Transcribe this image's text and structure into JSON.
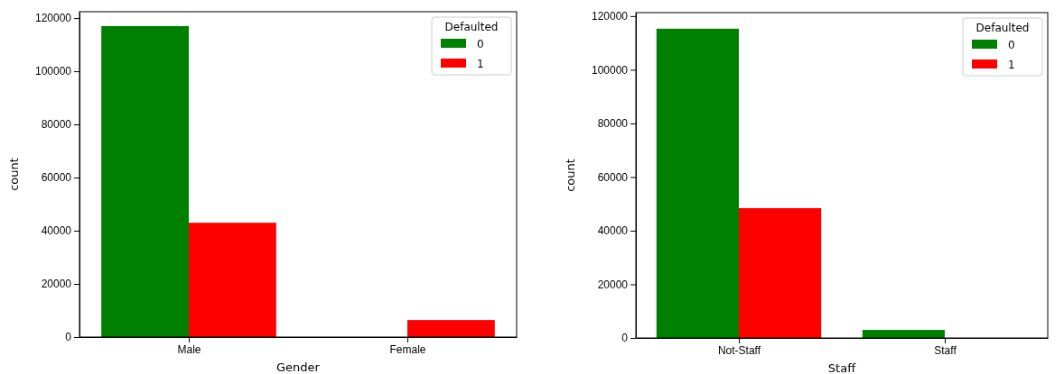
{
  "chart_data": [
    {
      "type": "bar",
      "xlabel": "Gender",
      "ylabel": "count",
      "categories": [
        "Male",
        "Female"
      ],
      "legend_title": "Defaulted",
      "legend": "top right",
      "ylim": [
        0,
        122400
      ],
      "yticks": [
        0,
        20000,
        40000,
        60000,
        80000,
        100000,
        120000
      ],
      "series": [
        {
          "name": "0",
          "color": "#008000",
          "values": [
            117000,
            0
          ]
        },
        {
          "name": "1",
          "color": "#ff0000",
          "values": [
            43000,
            6400
          ]
        }
      ]
    },
    {
      "type": "bar",
      "xlabel": "Staff",
      "ylabel": "count",
      "categories": [
        "Not-Staff",
        "Staff"
      ],
      "legend_title": "Defaulted",
      "legend": "top right",
      "ylim": [
        0,
        121300
      ],
      "yticks": [
        0,
        20000,
        40000,
        60000,
        80000,
        100000,
        120000
      ],
      "series": [
        {
          "name": "0",
          "color": "#008000",
          "values": [
            115300,
            3000
          ]
        },
        {
          "name": "1",
          "color": "#ff0000",
          "values": [
            48400,
            0
          ]
        }
      ]
    }
  ]
}
